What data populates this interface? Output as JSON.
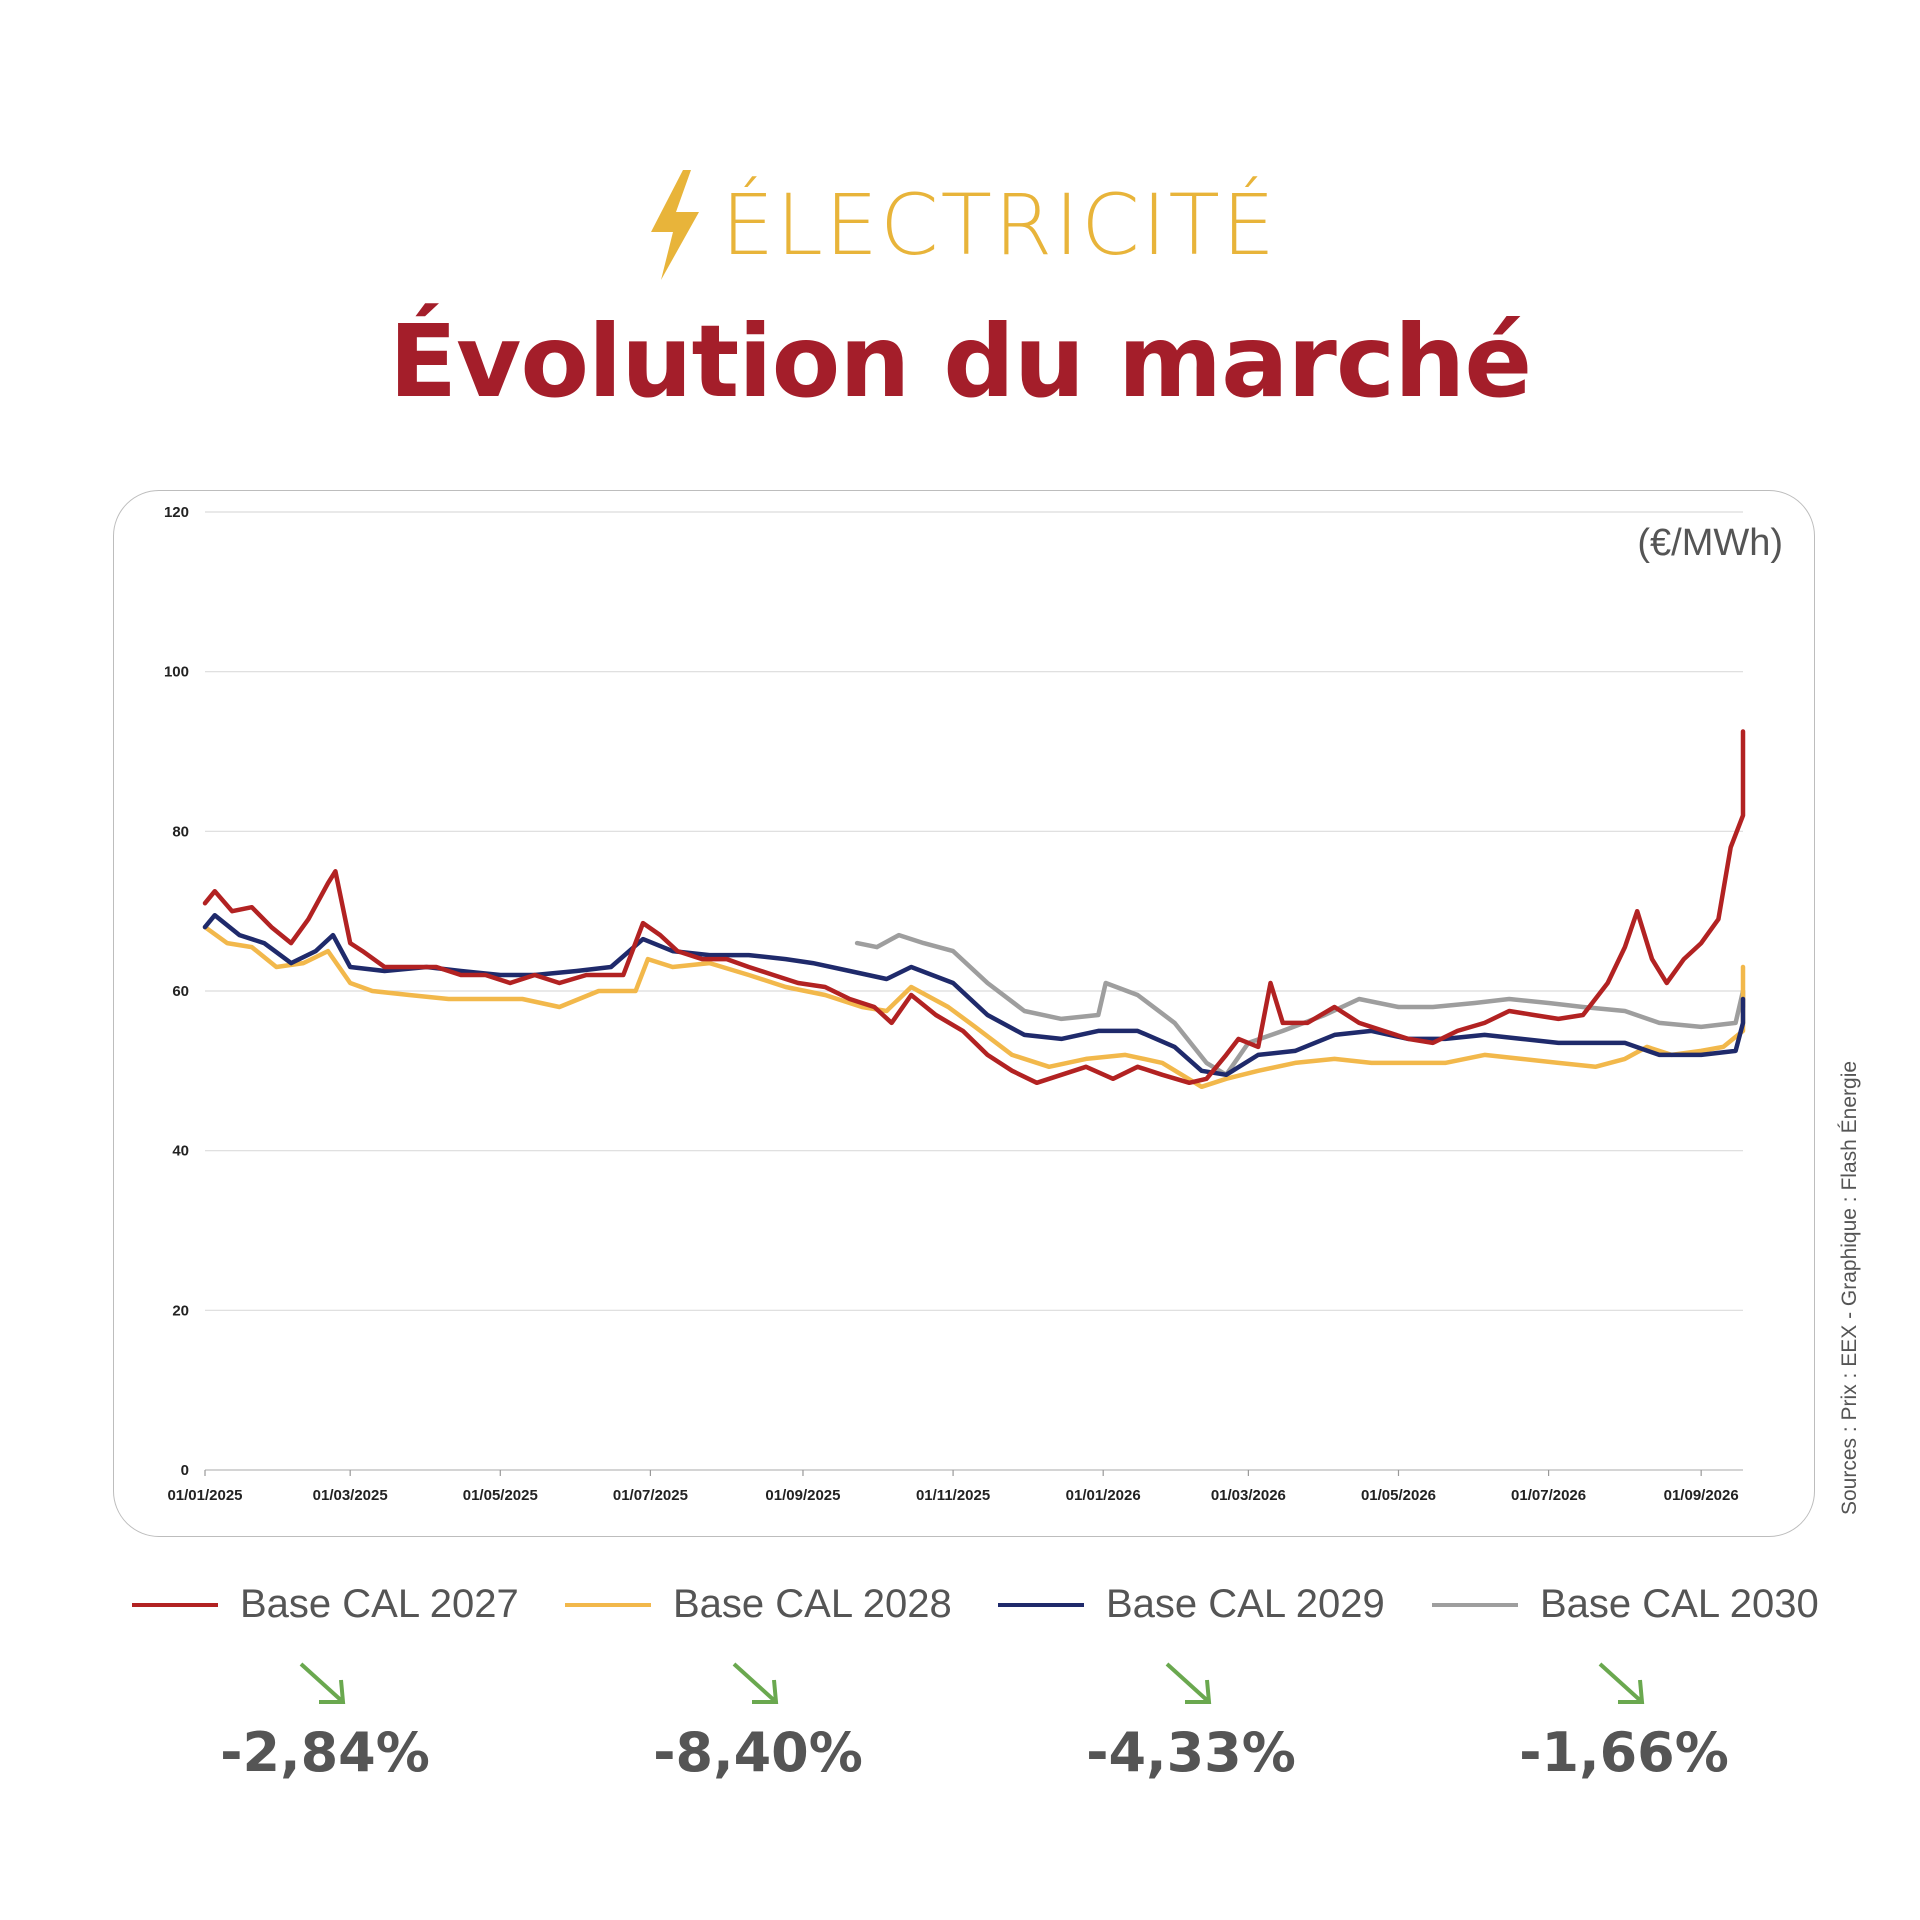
{
  "header": {
    "kicker": "ÉLECTRICITÉ",
    "title": "Évolution du marché",
    "accent": "#E8B43A",
    "title_color": "#A41E2A",
    "bolt_icon": "lightning-bolt-icon"
  },
  "unit": "(€/MWh)",
  "source": "Sources : Prix : EEX - Graphique : Flash Énergie",
  "changes": [
    {
      "series": "Base CAL 2027",
      "value": "-2,84%",
      "direction": "down"
    },
    {
      "series": "Base CAL 2028",
      "value": "-8,40%",
      "direction": "down"
    },
    {
      "series": "Base CAL 2029",
      "value": "-4,33%",
      "direction": "down"
    },
    {
      "series": "Base CAL 2030",
      "value": "-1,66%",
      "direction": "down"
    }
  ],
  "arrow_color": "#6AA84F",
  "chart_data": {
    "type": "line",
    "ylim": [
      0,
      120
    ],
    "yticks": [
      "0",
      "20",
      "40",
      "60",
      "80",
      "100",
      "120"
    ],
    "xlim": [
      "2025-01-01",
      "2026-09-18"
    ],
    "xticks": [
      "01/01/2025",
      "01/03/2025",
      "01/05/2025",
      "01/07/2025",
      "01/09/2025",
      "01/11/2025",
      "01/01/2026",
      "01/03/2026",
      "01/05/2026",
      "01/07/2026",
      "01/09/2026"
    ],
    "grid": true,
    "legend": "bottom",
    "series": [
      {
        "name": "Base CAL 2027",
        "color": "#B22222",
        "points": [
          [
            "2025-01-01",
            71
          ],
          [
            "2025-01-05",
            72.5
          ],
          [
            "2025-01-12",
            70
          ],
          [
            "2025-01-20",
            70.5
          ],
          [
            "2025-01-28",
            68
          ],
          [
            "2025-02-05",
            66
          ],
          [
            "2025-02-12",
            69
          ],
          [
            "2025-02-20",
            73.5
          ],
          [
            "2025-02-23",
            75
          ],
          [
            "2025-03-01",
            66
          ],
          [
            "2025-03-06",
            65
          ],
          [
            "2025-03-15",
            63
          ],
          [
            "2025-03-25",
            63
          ],
          [
            "2025-04-05",
            63
          ],
          [
            "2025-04-15",
            62
          ],
          [
            "2025-04-25",
            62
          ],
          [
            "2025-05-05",
            61
          ],
          [
            "2025-05-15",
            62
          ],
          [
            "2025-05-25",
            61
          ],
          [
            "2025-06-05",
            62
          ],
          [
            "2025-06-20",
            62
          ],
          [
            "2025-06-28",
            68.5
          ],
          [
            "2025-07-05",
            67
          ],
          [
            "2025-07-12",
            65
          ],
          [
            "2025-07-22",
            64
          ],
          [
            "2025-08-01",
            64
          ],
          [
            "2025-08-10",
            63
          ],
          [
            "2025-08-20",
            62
          ],
          [
            "2025-08-30",
            61
          ],
          [
            "2025-09-10",
            60.5
          ],
          [
            "2025-09-20",
            59
          ],
          [
            "2025-09-30",
            58
          ],
          [
            "2025-10-07",
            56
          ],
          [
            "2025-10-15",
            59.5
          ],
          [
            "2025-10-25",
            57
          ],
          [
            "2025-11-05",
            55
          ],
          [
            "2025-11-15",
            52
          ],
          [
            "2025-11-25",
            50
          ],
          [
            "2025-12-05",
            48.5
          ],
          [
            "2025-12-15",
            49.5
          ],
          [
            "2025-12-25",
            50.5
          ],
          [
            "2026-01-05",
            49
          ],
          [
            "2026-01-15",
            50.5
          ],
          [
            "2026-01-25",
            49.5
          ],
          [
            "2026-02-05",
            48.5
          ],
          [
            "2026-02-12",
            49
          ],
          [
            "2026-02-20",
            52
          ],
          [
            "2026-02-25",
            54
          ],
          [
            "2026-03-05",
            53
          ],
          [
            "2026-03-10",
            61
          ],
          [
            "2026-03-15",
            56
          ],
          [
            "2026-03-25",
            56
          ],
          [
            "2026-04-05",
            58
          ],
          [
            "2026-04-15",
            56
          ],
          [
            "2026-04-25",
            55
          ],
          [
            "2026-05-05",
            54
          ],
          [
            "2026-05-15",
            53.5
          ],
          [
            "2026-05-25",
            55
          ],
          [
            "2026-06-05",
            56
          ],
          [
            "2026-06-15",
            57.5
          ],
          [
            "2026-06-25",
            57
          ],
          [
            "2026-07-05",
            56.5
          ],
          [
            "2026-07-15",
            57
          ],
          [
            "2026-07-25",
            61
          ],
          [
            "2026-08-01",
            65.5
          ],
          [
            "2026-08-06",
            70
          ],
          [
            "2026-08-12",
            64
          ],
          [
            "2026-08-18",
            61
          ],
          [
            "2026-08-25",
            64
          ],
          [
            "2026-09-01",
            66
          ],
          [
            "2026-09-08",
            69
          ],
          [
            "2026-09-13",
            78
          ],
          [
            "2026-09-18",
            82
          ],
          [
            "2026-09-23",
            89
          ],
          [
            "2026-09-28",
            92.5
          ],
          [
            "2026-10-01",
            85
          ]
        ]
      },
      {
        "name": "Base CAL 2028",
        "color": "#F2B84B",
        "points": [
          [
            "2025-01-01",
            68
          ],
          [
            "2025-01-10",
            66
          ],
          [
            "2025-01-20",
            65.5
          ],
          [
            "2025-01-30",
            63
          ],
          [
            "2025-02-10",
            63.5
          ],
          [
            "2025-02-20",
            65
          ],
          [
            "2025-03-01",
            61
          ],
          [
            "2025-03-10",
            60
          ],
          [
            "2025-03-25",
            59.5
          ],
          [
            "2025-04-10",
            59
          ],
          [
            "2025-04-25",
            59
          ],
          [
            "2025-05-10",
            59
          ],
          [
            "2025-05-25",
            58
          ],
          [
            "2025-06-10",
            60
          ],
          [
            "2025-06-25",
            60
          ],
          [
            "2025-06-30",
            64
          ],
          [
            "2025-07-10",
            63
          ],
          [
            "2025-07-25",
            63.5
          ],
          [
            "2025-08-10",
            62
          ],
          [
            "2025-08-25",
            60.5
          ],
          [
            "2025-09-10",
            59.5
          ],
          [
            "2025-09-25",
            58
          ],
          [
            "2025-10-05",
            57.5
          ],
          [
            "2025-10-15",
            60.5
          ],
          [
            "2025-10-30",
            58
          ],
          [
            "2025-11-10",
            55.5
          ],
          [
            "2025-11-25",
            52
          ],
          [
            "2025-12-10",
            50.5
          ],
          [
            "2025-12-25",
            51.5
          ],
          [
            "2026-01-10",
            52
          ],
          [
            "2026-01-25",
            51
          ],
          [
            "2026-02-10",
            48
          ],
          [
            "2026-02-20",
            49
          ],
          [
            "2026-03-05",
            50
          ],
          [
            "2026-03-20",
            51
          ],
          [
            "2026-04-05",
            51.5
          ],
          [
            "2026-04-20",
            51
          ],
          [
            "2026-05-05",
            51
          ],
          [
            "2026-05-20",
            51
          ],
          [
            "2026-06-05",
            52
          ],
          [
            "2026-06-20",
            51.5
          ],
          [
            "2026-07-05",
            51
          ],
          [
            "2026-07-20",
            50.5
          ],
          [
            "2026-08-01",
            51.5
          ],
          [
            "2026-08-10",
            53
          ],
          [
            "2026-08-20",
            52
          ],
          [
            "2026-09-01",
            52.5
          ],
          [
            "2026-09-10",
            53
          ],
          [
            "2026-09-18",
            55
          ],
          [
            "2026-09-24",
            62
          ],
          [
            "2026-09-30",
            63
          ],
          [
            "2026-10-01",
            58
          ]
        ]
      },
      {
        "name": "Base CAL 2029",
        "color": "#1F2A6B",
        "points": [
          [
            "2025-01-01",
            68
          ],
          [
            "2025-01-05",
            69.5
          ],
          [
            "2025-01-15",
            67
          ],
          [
            "2025-01-25",
            66
          ],
          [
            "2025-02-05",
            63.5
          ],
          [
            "2025-02-15",
            65
          ],
          [
            "2025-02-22",
            67
          ],
          [
            "2025-03-01",
            63
          ],
          [
            "2025-03-15",
            62.5
          ],
          [
            "2025-04-01",
            63
          ],
          [
            "2025-04-15",
            62.5
          ],
          [
            "2025-05-01",
            62
          ],
          [
            "2025-05-15",
            62
          ],
          [
            "2025-06-01",
            62.5
          ],
          [
            "2025-06-15",
            63
          ],
          [
            "2025-06-28",
            66.5
          ],
          [
            "2025-07-10",
            65
          ],
          [
            "2025-07-25",
            64.5
          ],
          [
            "2025-08-10",
            64.5
          ],
          [
            "2025-08-25",
            64
          ],
          [
            "2025-09-05",
            63.5
          ],
          [
            "2025-09-20",
            62.5
          ],
          [
            "2025-10-05",
            61.5
          ],
          [
            "2025-10-15",
            63
          ],
          [
            "2025-11-01",
            61
          ],
          [
            "2025-11-15",
            57
          ],
          [
            "2025-11-30",
            54.5
          ],
          [
            "2025-12-15",
            54
          ],
          [
            "2025-12-30",
            55
          ],
          [
            "2026-01-15",
            55
          ],
          [
            "2026-01-30",
            53
          ],
          [
            "2026-02-10",
            50
          ],
          [
            "2026-02-20",
            49.5
          ],
          [
            "2026-03-05",
            52
          ],
          [
            "2026-03-20",
            52.5
          ],
          [
            "2026-04-05",
            54.5
          ],
          [
            "2026-04-20",
            55
          ],
          [
            "2026-05-05",
            54
          ],
          [
            "2026-05-20",
            54
          ],
          [
            "2026-06-05",
            54.5
          ],
          [
            "2026-06-20",
            54
          ],
          [
            "2026-07-05",
            53.5
          ],
          [
            "2026-07-20",
            53.5
          ],
          [
            "2026-08-01",
            53.5
          ],
          [
            "2026-08-15",
            52
          ],
          [
            "2026-09-01",
            52
          ],
          [
            "2026-09-15",
            52.5
          ],
          [
            "2026-09-22",
            56
          ],
          [
            "2026-09-26",
            59
          ],
          [
            "2026-10-01",
            56
          ]
        ]
      },
      {
        "name": "Base CAL 2030",
        "color": "#9E9E9E",
        "points": [
          [
            "2025-09-23",
            66
          ],
          [
            "2025-10-01",
            65.5
          ],
          [
            "2025-10-10",
            67
          ],
          [
            "2025-10-20",
            66
          ],
          [
            "2025-11-01",
            65
          ],
          [
            "2025-11-15",
            61
          ],
          [
            "2025-11-30",
            57.5
          ],
          [
            "2025-12-15",
            56.5
          ],
          [
            "2025-12-30",
            57
          ],
          [
            "2026-01-02",
            61
          ],
          [
            "2026-01-15",
            59.5
          ],
          [
            "2026-01-30",
            56
          ],
          [
            "2026-02-12",
            51
          ],
          [
            "2026-02-20",
            49.5
          ],
          [
            "2026-03-01",
            53.5
          ],
          [
            "2026-03-15",
            55
          ],
          [
            "2026-04-01",
            57
          ],
          [
            "2026-04-15",
            59
          ],
          [
            "2026-05-01",
            58
          ],
          [
            "2026-05-15",
            58
          ],
          [
            "2026-06-01",
            58.5
          ],
          [
            "2026-06-15",
            59
          ],
          [
            "2026-07-01",
            58.5
          ],
          [
            "2026-07-15",
            58
          ],
          [
            "2026-08-01",
            57.5
          ],
          [
            "2026-08-15",
            56
          ],
          [
            "2026-09-01",
            55.5
          ],
          [
            "2026-09-15",
            56
          ],
          [
            "2026-09-25",
            60
          ],
          [
            "2026-10-01",
            58
          ]
        ]
      }
    ]
  }
}
